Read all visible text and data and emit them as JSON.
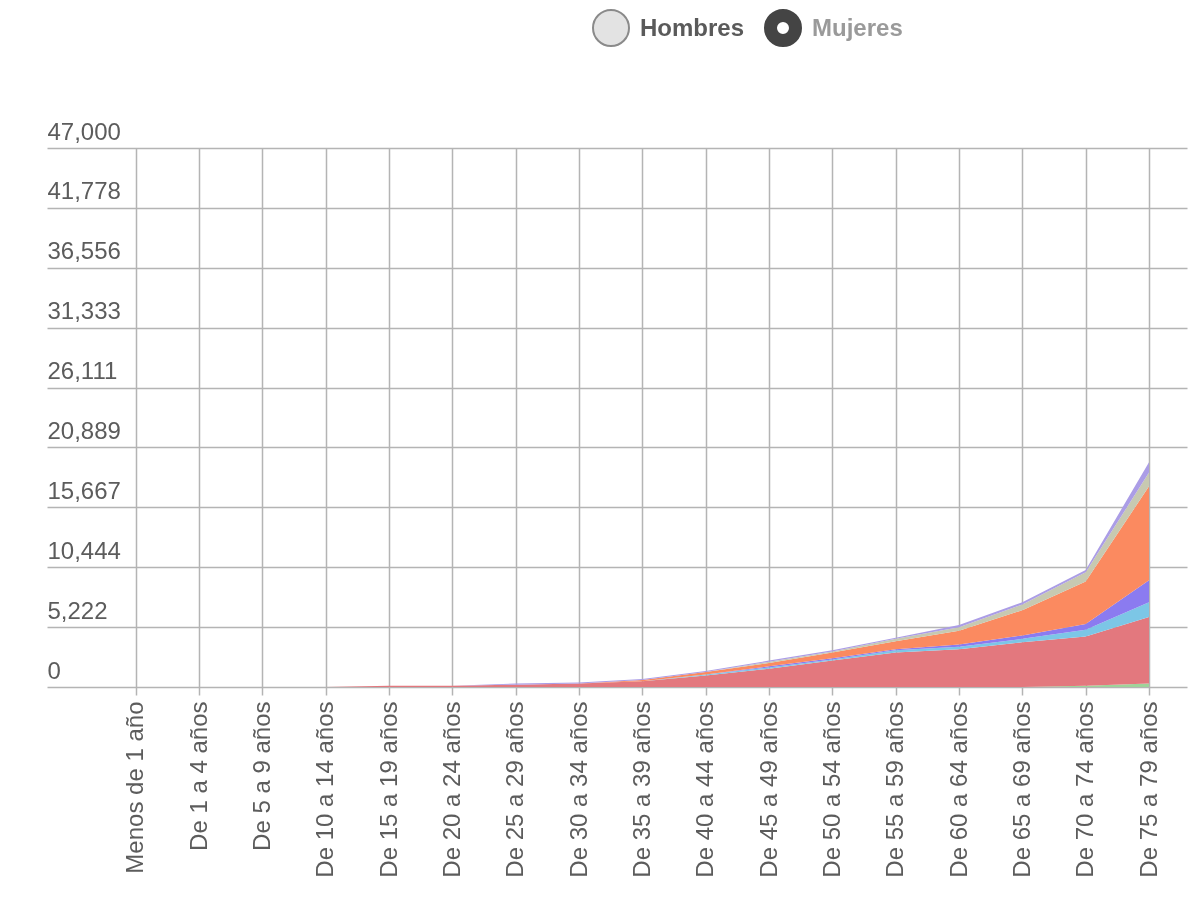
{
  "chart_data": {
    "type": "area",
    "stacked": true,
    "grid": true,
    "annotations": [
      "Hombres",
      "Mujeres"
    ],
    "categories": [
      "Menos de 1 año",
      "De 1 a 4 años",
      "De 5 a 9 años",
      "De 10 a 14 años",
      "De 15 a 19 años",
      "De 20 a 24 años",
      "De 25 a 29 años",
      "De 30 a 34 años",
      "De 35 a 39 años",
      "De 40 a 44 años",
      "De 45 a 49 años",
      "De 50 a 54 años",
      "De 55 a 59 años",
      "De 60 a 64 años",
      "De 65 a 69 años",
      "De 70 a 74 años",
      "De 75 a 79 años"
    ],
    "ylim": [
      0,
      47000
    ],
    "yticks": [
      0,
      {
        "value": 5222,
        "label": "5,222"
      },
      {
        "value": 10444,
        "label": "10,444"
      },
      {
        "value": 15667,
        "label": "15,667"
      },
      {
        "value": 20889,
        "label": "20,889"
      },
      {
        "value": 26111,
        "label": "26,111"
      },
      {
        "value": 31333,
        "label": "31,333"
      },
      {
        "value": 36556,
        "label": "36,556"
      },
      {
        "value": 41778,
        "label": "41,778"
      },
      {
        "value": 47000,
        "label": "47,000"
      }
    ],
    "series": [
      {
        "color": "#9fd39a",
        "values": [
          0,
          0,
          0,
          0,
          0,
          0,
          0,
          0,
          0,
          0,
          0,
          0,
          0,
          0,
          0,
          100,
          300
        ]
      },
      {
        "color": "#e3787e",
        "values": [
          0,
          0,
          0,
          0,
          100,
          100,
          200,
          300,
          500,
          1000,
          1600,
          2300,
          3000,
          3300,
          3900,
          4300,
          5800
        ]
      },
      {
        "color": "#7cc6e6",
        "values": [
          0,
          0,
          0,
          0,
          0,
          0,
          0,
          0,
          0,
          100,
          100,
          100,
          200,
          200,
          300,
          600,
          1300
        ]
      },
      {
        "color": "#8b7bf0",
        "values": [
          0,
          0,
          0,
          0,
          0,
          0,
          0,
          0,
          0,
          0,
          100,
          100,
          100,
          200,
          300,
          500,
          1900
        ]
      },
      {
        "color": "#fb8a60",
        "values": [
          0,
          0,
          0,
          0,
          0,
          0,
          0,
          0,
          100,
          200,
          300,
          500,
          700,
          1200,
          2200,
          3700,
          8200
        ]
      },
      {
        "color": "#c7c9b1",
        "values": [
          0,
          0,
          0,
          0,
          0,
          0,
          0,
          0,
          0,
          0,
          100,
          100,
          200,
          300,
          500,
          800,
          1200
        ]
      },
      {
        "color": "#ab9de6",
        "values": [
          0,
          0,
          0,
          0,
          0,
          0,
          100,
          100,
          100,
          100,
          100,
          100,
          100,
          200,
          200,
          200,
          900
        ]
      }
    ]
  }
}
